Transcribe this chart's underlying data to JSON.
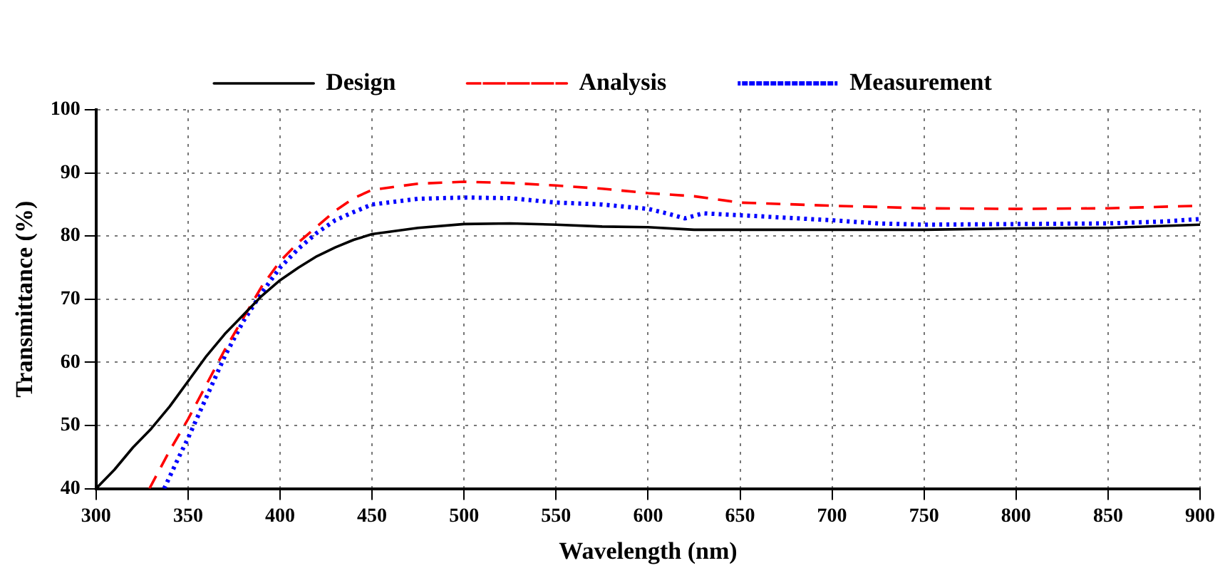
{
  "chart_data": {
    "type": "line",
    "xlabel": "Wavelength (nm)",
    "ylabel": "Transmittance (%)",
    "xlim": [
      300,
      900
    ],
    "xticks": [
      300,
      350,
      400,
      450,
      500,
      550,
      600,
      650,
      700,
      750,
      800,
      850,
      900
    ],
    "ylim": [
      40,
      100
    ],
    "yticks": [
      40,
      50,
      60,
      70,
      80,
      90,
      100
    ],
    "grid": true,
    "legend": "top",
    "marker": "none",
    "series": [
      {
        "name": "Design",
        "color": "#000000",
        "line_style": "solid",
        "x": [
          300,
          310,
          320,
          330,
          340,
          350,
          360,
          370,
          380,
          390,
          400,
          410,
          420,
          430,
          440,
          450,
          475,
          500,
          525,
          550,
          575,
          600,
          625,
          650,
          700,
          750,
          800,
          850,
          880,
          900
        ],
        "values": [
          40,
          43,
          46.5,
          49.5,
          53,
          57,
          61,
          64.5,
          67.5,
          70.5,
          73,
          75,
          76.8,
          78.2,
          79.4,
          80.3,
          81.3,
          81.9,
          82,
          81.8,
          81.5,
          81.4,
          81,
          81,
          81,
          81,
          81.2,
          81.3,
          81.6,
          81.8
        ]
      },
      {
        "name": "Analysis",
        "color": "#ff0000",
        "line_style": "dashed",
        "x": [
          329,
          340,
          350,
          360,
          370,
          380,
          390,
          400,
          410,
          420,
          430,
          440,
          450,
          475,
          500,
          525,
          550,
          575,
          600,
          625,
          650,
          700,
          750,
          800,
          850,
          875,
          900
        ],
        "values": [
          40,
          46,
          51,
          56.5,
          62,
          67,
          72,
          76,
          79,
          81.5,
          84,
          86,
          87.3,
          88.3,
          88.6,
          88.4,
          88,
          87.5,
          86.8,
          86.3,
          85.3,
          84.8,
          84.4,
          84.3,
          84.4,
          84.6,
          84.8
        ]
      },
      {
        "name": "Measurement",
        "color": "#0000ff",
        "line_style": "dotted",
        "x": [
          337,
          345,
          350,
          360,
          370,
          380,
          390,
          400,
          410,
          420,
          430,
          440,
          450,
          475,
          500,
          525,
          550,
          575,
          600,
          610,
          620,
          630,
          650,
          700,
          725,
          750,
          800,
          850,
          880,
          900
        ],
        "values": [
          40,
          45,
          48,
          54.5,
          61,
          66.5,
          71,
          75,
          78,
          80.5,
          82.5,
          83.8,
          85,
          85.9,
          86.1,
          86,
          85.3,
          85,
          84.3,
          83.6,
          82.8,
          83.6,
          83.3,
          82.5,
          82,
          81.8,
          81.9,
          82,
          82.3,
          82.7
        ]
      }
    ]
  }
}
